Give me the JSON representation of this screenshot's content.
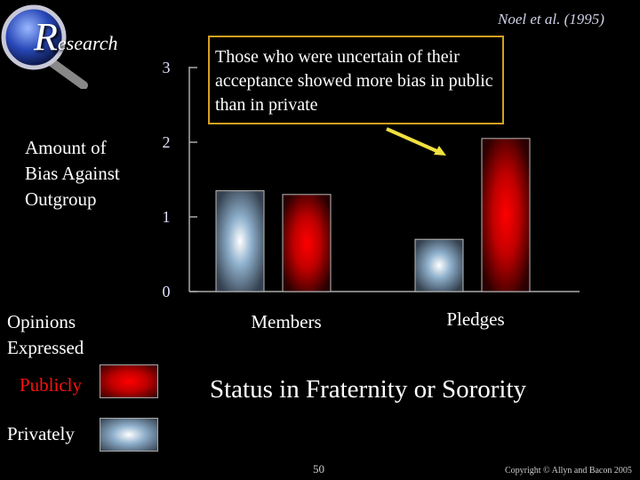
{
  "header": {
    "logo_initial": "R",
    "logo_rest": "esearch",
    "citation": "Noel et al. (1995)"
  },
  "note": "Those who were uncertain of their acceptance showed more bias in public than in private",
  "legend": {
    "title_line1": "Opinions",
    "title_line2": "Expressed",
    "publicly": "Publicly",
    "privately": "Privately"
  },
  "footer": {
    "page": "50",
    "copyright": "Copyright © Allyn and Bacon 2005"
  },
  "colors": {
    "publicly": "#ff0000",
    "privately": "#8fb0cc",
    "note_border": "#d4a020",
    "arrow": "#f0e040"
  },
  "chart_data": {
    "type": "bar",
    "title": "",
    "ylabel_line1": "Amount of",
    "ylabel_line2": "Bias Against",
    "ylabel_line3": "Outgroup",
    "xlabel": "Status in Fraternity or Sorority",
    "categories": [
      "Members",
      "Pledges"
    ],
    "series": [
      {
        "name": "Privately",
        "values": [
          1.35,
          0.7
        ]
      },
      {
        "name": "Publicly",
        "values": [
          1.3,
          2.05
        ]
      }
    ],
    "ylim": [
      0,
      3
    ],
    "yticks": [
      "0",
      "1",
      "2",
      "3"
    ],
    "grid": false
  }
}
